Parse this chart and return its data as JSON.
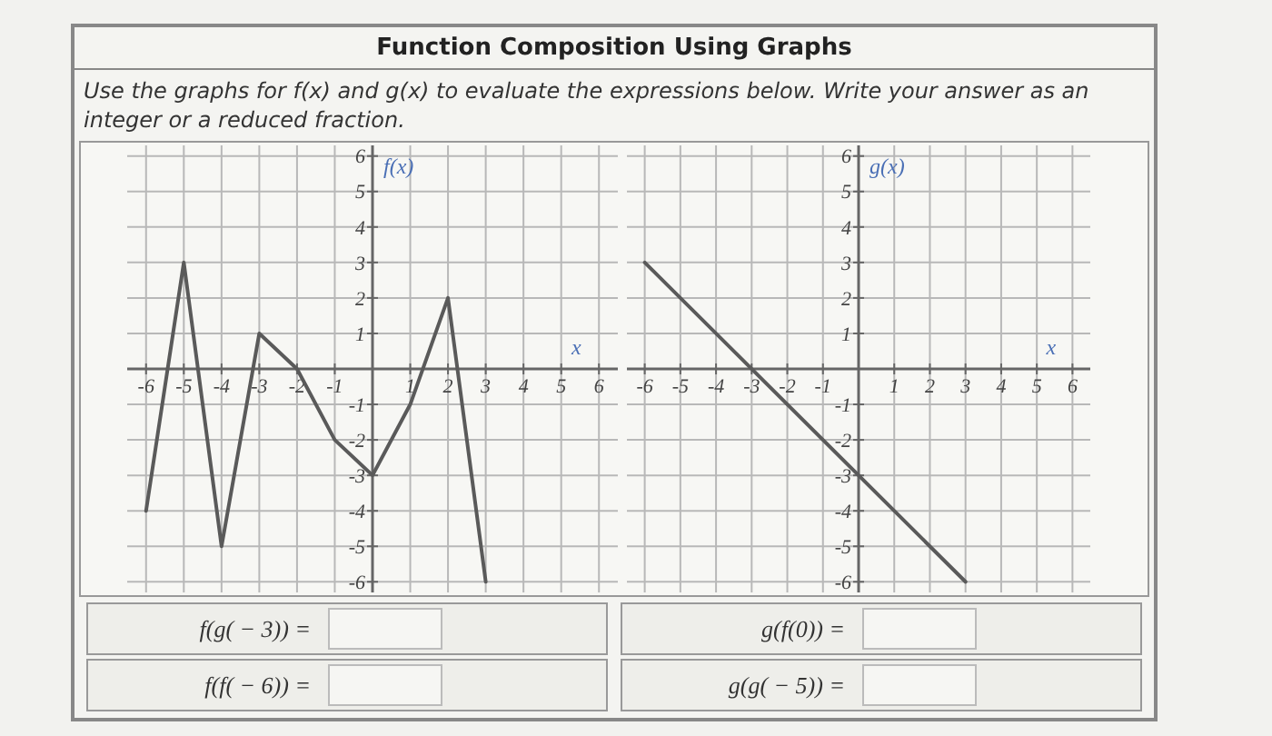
{
  "chart_data": [
    {
      "type": "line",
      "title": "Function Composition Using Graphs",
      "subtitle": "Use the graphs for f(x) and g(x) to evaluate the expressions below. Write your answer as an integer or a reduced fraction.",
      "xlabel": "x",
      "ylabel": "f(x)",
      "x": [
        -6,
        -5,
        -4,
        -3,
        -2,
        -1,
        0,
        1,
        2,
        3
      ],
      "series": [
        {
          "color": "#5a5a5a",
          "values": [
            -4,
            3,
            -5,
            1,
            0,
            -2,
            -3,
            -1,
            2,
            -6
          ]
        }
      ],
      "xlim": [
        -6.5,
        6.5
      ],
      "ylim": [
        -6.3,
        6.3
      ],
      "xticks": [
        -6,
        -5,
        -4,
        -3,
        -2,
        -1,
        1,
        2,
        3,
        4,
        5,
        6
      ],
      "yticks": [
        -6,
        -5,
        -4,
        -3,
        -2,
        -1,
        1,
        2,
        3,
        4,
        5,
        6
      ],
      "grid": true,
      "marker": "none",
      "line_style": "solid",
      "annotations": [
        "f(g( − 3)) =",
        "f(f( − 6)) ="
      ]
    },
    {
      "type": "line",
      "xlabel": "x",
      "ylabel": "g(x)",
      "x": [
        -6,
        3
      ],
      "series": [
        {
          "color": "#5a5a5a",
          "values": [
            3,
            -6
          ]
        }
      ],
      "xlim": [
        -6.5,
        6.5
      ],
      "ylim": [
        -6.3,
        6.3
      ],
      "xticks": [
        -6,
        -5,
        -4,
        -3,
        -2,
        -1,
        1,
        2,
        3,
        4,
        5,
        6
      ],
      "yticks": [
        -6,
        -5,
        -4,
        -3,
        -2,
        -1,
        1,
        2,
        3,
        4,
        5,
        6
      ],
      "grid": true,
      "marker": "none",
      "line_style": "solid",
      "annotations": [
        "g(f(0)) =",
        "g(g( − 5)) ="
      ]
    }
  ]
}
